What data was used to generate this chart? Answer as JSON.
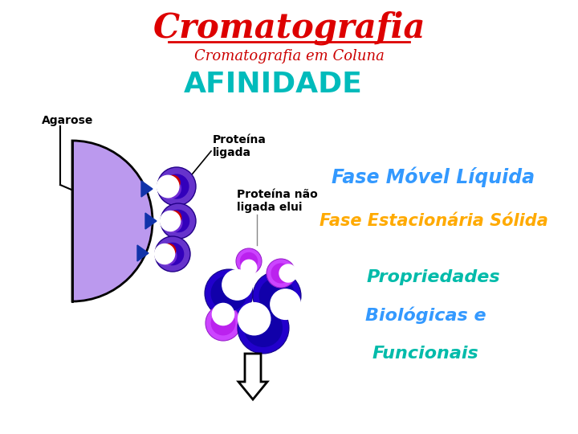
{
  "title": "Cromatografia",
  "subtitle": "Cromatografia em Coluna",
  "afinidade": "AFINIDADE",
  "label_agarose": "Agarose",
  "label_proteina_ligada": "Proteína\nligada",
  "label_proteina_nao": "Proteína não\nligada elui",
  "text_fase_movel": "Fase Móvel Líquida",
  "text_fase_estacionaria": "Fase Estacionária Sólida",
  "text_prop": "Propriedades",
  "text_bio": "Biológicas e",
  "text_func": "Funcionais",
  "bg_color": "#ffffff",
  "title_color": "#dd0000",
  "subtitle_color": "#cc0000",
  "afinidade_color": "#00bbbb",
  "fase_movel_color": "#3399ff",
  "fase_estacionaria_color": "#ffaa00",
  "prop_color": "#00bbaa",
  "bio_color": "#3399ff",
  "func_color": "#00bbaa",
  "agarose_color": "#bb99ee",
  "purple_dark": "#2200bb",
  "purple_med": "#6633cc",
  "purple_light": "#cc66ff",
  "red_spot": "#cc0000",
  "magenta": "#cc00cc"
}
